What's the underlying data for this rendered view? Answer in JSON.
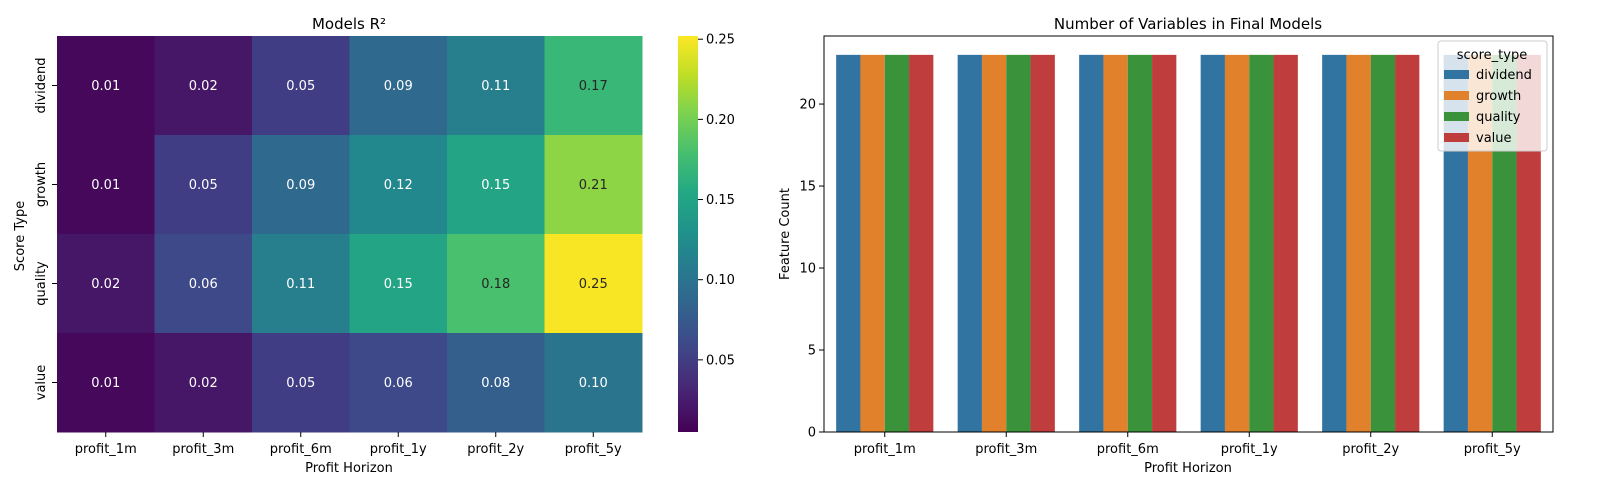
{
  "chart_data": [
    {
      "type": "heatmap",
      "title": "Models R²",
      "xlabel": "Profit Horizon",
      "ylabel": "Score Type",
      "x_categories": [
        "profit_1m",
        "profit_3m",
        "profit_6m",
        "profit_1y",
        "profit_2y",
        "profit_5y"
      ],
      "y_categories": [
        "dividend",
        "growth",
        "quality",
        "value"
      ],
      "values": [
        [
          0.01,
          0.02,
          0.05,
          0.09,
          0.11,
          0.17
        ],
        [
          0.01,
          0.05,
          0.09,
          0.12,
          0.15,
          0.21
        ],
        [
          0.02,
          0.06,
          0.11,
          0.15,
          0.18,
          0.25
        ],
        [
          0.01,
          0.02,
          0.05,
          0.06,
          0.08,
          0.1
        ]
      ],
      "cell_labels": [
        [
          "0.01",
          "0.02",
          "0.05",
          "0.09",
          "0.11",
          "0.17"
        ],
        [
          "0.01",
          "0.05",
          "0.09",
          "0.12",
          "0.15",
          "0.21"
        ],
        [
          "0.02",
          "0.06",
          "0.11",
          "0.15",
          "0.18",
          "0.25"
        ],
        [
          "0.01",
          "0.02",
          "0.05",
          "0.06",
          "0.08",
          "0.10"
        ]
      ],
      "colormap": "viridis",
      "colorbar": {
        "range": [
          0.005,
          0.252
        ],
        "ticks": [
          0.05,
          0.1,
          0.15,
          0.2,
          0.25
        ],
        "tick_labels": [
          "0.05",
          "0.10",
          "0.15",
          "0.20",
          "0.25"
        ]
      }
    },
    {
      "type": "bar",
      "title": "Number of Variables in Final Models",
      "xlabel": "Profit Horizon",
      "ylabel": "Feature Count",
      "categories": [
        "profit_1m",
        "profit_3m",
        "profit_6m",
        "profit_1y",
        "profit_2y",
        "profit_5y"
      ],
      "series": [
        {
          "name": "dividend",
          "color": "#3274a1",
          "values": [
            23,
            23,
            23,
            23,
            23,
            23
          ]
        },
        {
          "name": "growth",
          "color": "#e1812c",
          "values": [
            23,
            23,
            23,
            23,
            23,
            23
          ]
        },
        {
          "name": "quality",
          "color": "#3a923a",
          "values": [
            23,
            23,
            23,
            23,
            23,
            23
          ]
        },
        {
          "name": "value",
          "color": "#c03d3e",
          "values": [
            23,
            23,
            23,
            23,
            23,
            23
          ]
        }
      ],
      "ylim": [
        0,
        24.15
      ],
      "yticks": [
        0,
        5,
        10,
        15,
        20
      ],
      "ytick_labels": [
        "0",
        "5",
        "10",
        "15",
        "20"
      ],
      "legend": {
        "title": "score_type",
        "placement": "top-right"
      },
      "grid": false
    }
  ]
}
